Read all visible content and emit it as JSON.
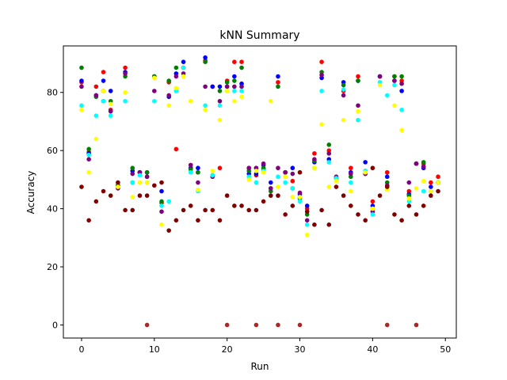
{
  "chart_data": {
    "type": "scatter",
    "title": "kNN Summary",
    "xlabel": "Run",
    "ylabel": "Accuracy",
    "xlim": [
      -2.5,
      51.5
    ],
    "ylim": [
      -4.5,
      96
    ],
    "xticks": [
      0,
      10,
      20,
      30,
      40,
      50
    ],
    "yticks": [
      0,
      20,
      40,
      60,
      80
    ],
    "grid": false,
    "legend": "none",
    "x": [
      0,
      1,
      2,
      3,
      4,
      5,
      6,
      7,
      8,
      9,
      10,
      11,
      12,
      13,
      14,
      15,
      16,
      17,
      18,
      19,
      20,
      21,
      22,
      23,
      24,
      25,
      26,
      27,
      28,
      29,
      30,
      31,
      32,
      33,
      34,
      35,
      36,
      37,
      38,
      39,
      40,
      41,
      42,
      43,
      44,
      45,
      46,
      47,
      48,
      49
    ],
    "series": [
      {
        "color": "#ff0000",
        "values": [
          83.5,
          59.5,
          82.0,
          87.0,
          74.0,
          48.0,
          88.5,
          49.0,
          52.5,
          51.0,
          85.5,
          42.0,
          83.5,
          60.5,
          88.5,
          55.0,
          52.5,
          91.0,
          82.0,
          54.0,
          84.0,
          90.5,
          90.5,
          54.0,
          51.5,
          53.5,
          47.0,
          83.5,
          52.5,
          49.5,
          44.0,
          40.0,
          59.0,
          90.5,
          60.0,
          50.5,
          80.5,
          54.0,
          85.5,
          52.0,
          42.5,
          85.5,
          52.5,
          85.5,
          84.0,
          46.0,
          55.5,
          55.5,
          49.0,
          51.0
        ]
      },
      {
        "color": "#0000ff",
        "values": [
          84.0,
          59.0,
          79.0,
          84.0,
          80.5,
          48.0,
          87.0,
          53.0,
          52.5,
          52.5,
          85.5,
          46.0,
          78.5,
          86.5,
          90.5,
          54.0,
          54.0,
          92.0,
          82.0,
          82.0,
          82.0,
          85.5,
          83.0,
          52.0,
          52.0,
          55.0,
          49.0,
          85.5,
          52.5,
          54.0,
          45.0,
          41.0,
          56.0,
          85.0,
          57.0,
          50.5,
          83.5,
          52.5,
          84.0,
          56.0,
          41.0,
          85.5,
          51.0,
          84.0,
          80.5,
          45.0,
          55.5,
          54.0,
          47.5,
          49.0
        ]
      },
      {
        "color": "#008000",
        "values": [
          88.5,
          60.5,
          78.5,
          77.0,
          77.0,
          48.0,
          85.5,
          54.0,
          52.5,
          52.5,
          85.5,
          42.5,
          84.0,
          88.5,
          88.5,
          53.5,
          52.5,
          90.5,
          51.5,
          80.5,
          83.5,
          84.0,
          88.5,
          53.0,
          54.0,
          54.0,
          46.0,
          82.0,
          52.5,
          47.0,
          43.5,
          38.0,
          56.5,
          87.0,
          62.0,
          50.5,
          82.5,
          51.0,
          84.0,
          53.0,
          40.0,
          85.5,
          49.0,
          85.5,
          85.5,
          44.5,
          55.5,
          56.0,
          46.0,
          49.0
        ]
      },
      {
        "color": "#800080",
        "values": [
          82.0,
          57.0,
          79.0,
          80.5,
          73.5,
          47.0,
          86.5,
          52.0,
          52.5,
          51.0,
          80.5,
          39.0,
          79.0,
          85.5,
          86.5,
          55.0,
          49.0,
          82.0,
          51.0,
          77.0,
          82.0,
          82.0,
          82.0,
          54.0,
          54.0,
          55.5,
          47.0,
          54.0,
          52.5,
          52.0,
          45.5,
          36.0,
          57.0,
          86.0,
          59.0,
          51.0,
          79.0,
          52.0,
          75.5,
          52.0,
          39.0,
          85.5,
          48.0,
          84.0,
          83.0,
          49.0,
          55.5,
          54.5,
          46.0,
          49.0
        ]
      },
      {
        "color": "#00ffff",
        "values": [
          75.5,
          58.5,
          72.0,
          77.0,
          72.0,
          49.0,
          77.0,
          49.0,
          51.5,
          49.0,
          77.0,
          41.0,
          42.5,
          80.5,
          88.5,
          52.5,
          46.0,
          75.5,
          51.5,
          75.5,
          80.5,
          80.5,
          80.5,
          51.0,
          49.0,
          53.0,
          44.5,
          51.0,
          49.0,
          47.0,
          42.5,
          34.5,
          54.0,
          80.5,
          56.0,
          50.5,
          81.0,
          49.0,
          70.5,
          53.0,
          38.0,
          83.5,
          79.0,
          82.5,
          74.0,
          42.5,
          0,
          46.0,
          46.0,
          49.0
        ]
      },
      {
        "color": "#ffff00",
        "values": [
          74.0,
          52.5,
          64.0,
          80.5,
          76.0,
          47.5,
          80.0,
          44.0,
          49.0,
          49.0,
          85.0,
          34.5,
          75.5,
          81.5,
          85.5,
          77.0,
          46.5,
          74.0,
          53.0,
          70.5,
          80.5,
          77.0,
          78.5,
          50.0,
          53.0,
          52.5,
          77.0,
          47.5,
          51.0,
          44.0,
          44.0,
          31.0,
          54.0,
          69.0,
          47.5,
          49.5,
          70.5,
          46.0,
          73.5,
          52.5,
          40.0,
          82.5,
          46.5,
          75.5,
          67.0,
          43.5,
          47.0,
          49.5,
          46.0,
          49.0
        ]
      },
      {
        "color": "#800000",
        "values": [
          47.5,
          36.0,
          42.5,
          46.0,
          44.5,
          49.0,
          39.5,
          39.5,
          44.5,
          44.5,
          48.0,
          49.0,
          32.5,
          36.0,
          39.5,
          41.0,
          36.0,
          39.5,
          39.5,
          36.0,
          44.5,
          41.0,
          41.0,
          39.5,
          39.5,
          42.5,
          44.5,
          44.5,
          38.0,
          41.0,
          52.5,
          39.0,
          34.5,
          39.5,
          34.5,
          47.5,
          44.5,
          41.0,
          38.0,
          36.0,
          54.0,
          44.5,
          47.5,
          38.0,
          36.0,
          41.0,
          38.0,
          41.0,
          44.5,
          46.0
        ]
      },
      {
        "color": "#a52a2a",
        "values": [
          null,
          null,
          null,
          null,
          null,
          null,
          null,
          null,
          null,
          0,
          null,
          null,
          null,
          null,
          null,
          null,
          null,
          null,
          null,
          null,
          0,
          null,
          null,
          null,
          0,
          null,
          null,
          0,
          null,
          null,
          0,
          null,
          null,
          null,
          null,
          null,
          null,
          null,
          null,
          null,
          null,
          null,
          0,
          null,
          null,
          null,
          0,
          null,
          null,
          null
        ]
      }
    ]
  }
}
